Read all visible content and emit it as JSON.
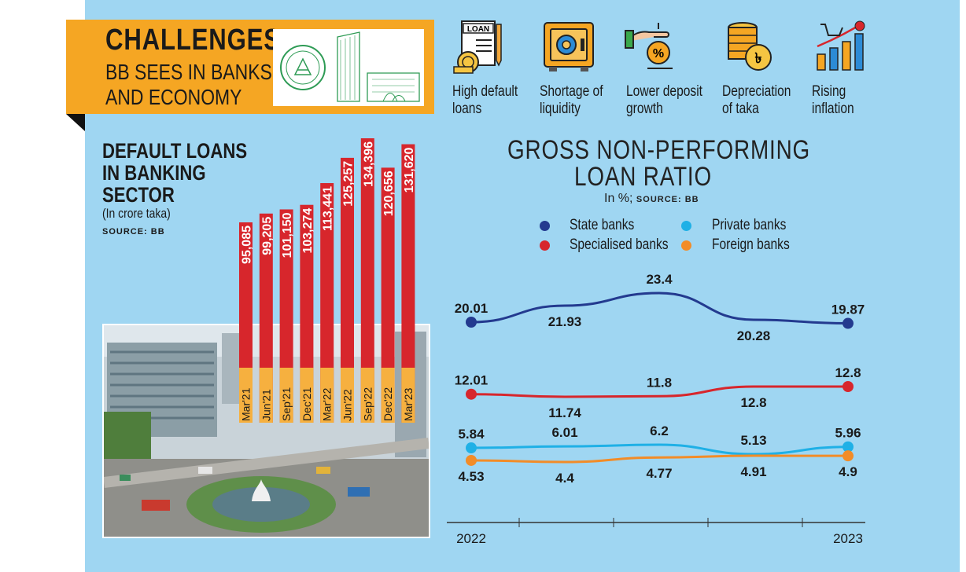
{
  "banner": {
    "title": "CHALLENGES",
    "subtitle_line1": "BB SEES IN BANKS",
    "subtitle_line2": "AND ECONOMY",
    "photo_icon": "bangladesh-bank-logo-and-building"
  },
  "challenges": [
    {
      "icon": "loan-document-icon",
      "line1": "High default",
      "line2": "loans"
    },
    {
      "icon": "safe-vault-icon",
      "line1": "Shortage of",
      "line2": "liquidity"
    },
    {
      "icon": "hand-coin-deposit-icon",
      "line1": "Lower deposit",
      "line2": "growth"
    },
    {
      "icon": "taka-coin-stack-icon",
      "line1": "Depreciation",
      "line2": "of taka"
    },
    {
      "icon": "rising-chart-cart-icon",
      "line1": "Rising",
      "line2": "inflation"
    }
  ],
  "colors": {
    "background": "#9fd6f2",
    "banner": "#f5a623",
    "bar_red": "#d7262c",
    "bar_label_band": "#f6b03f",
    "state": "#233a8f",
    "specialised": "#d7262c",
    "private": "#1fb0e6",
    "foreign": "#f28c28"
  },
  "chart_data": [
    {
      "type": "bar",
      "title_lines": [
        "DEFAULT LOANS",
        "IN BANKING",
        "SECTOR"
      ],
      "unit": "(In crore taka)",
      "source": "SOURCE: BB",
      "categories": [
        "Mar'21",
        "Jun'21",
        "Sep'21",
        "Dec'21",
        "Mar'22",
        "Jun'22",
        "Sep'22",
        "Dec'22",
        "Mar'23"
      ],
      "values": [
        95085,
        99205,
        101150,
        103274,
        113441,
        125257,
        134396,
        120656,
        131620
      ],
      "value_labels": [
        "95,085",
        "99,205",
        "101,150",
        "103,274",
        "113,441",
        "125,257",
        "134,396",
        "120,656",
        "131,620"
      ],
      "grid": false,
      "background_photo": "dhaka-motijheel-city-photo"
    },
    {
      "type": "line",
      "title_line1": "GROSS NON-PERFORMING",
      "title_line2": "LOAN RATIO",
      "unit": "In %;",
      "source": "SOURCE: BB",
      "x_tick_labels": [
        "2022",
        "2023"
      ],
      "legend": [
        "State banks",
        "Private banks",
        "Specialised banks",
        "Foreign banks"
      ],
      "legend_placement": "top",
      "grid": false,
      "series": [
        {
          "name": "State banks",
          "values": [
            20.01,
            21.93,
            23.4,
            20.28,
            19.87
          ],
          "labels": [
            "20.01",
            "21.93",
            "23.4",
            "20.28",
            "19.87"
          ]
        },
        {
          "name": "Specialised banks",
          "values": [
            12.01,
            11.74,
            11.8,
            12.8,
            12.8
          ],
          "labels": [
            "12.01",
            "11.74",
            "11.8",
            "12.8",
            "12.8"
          ]
        },
        {
          "name": "Private banks",
          "values": [
            5.84,
            6.01,
            6.2,
            5.13,
            5.96
          ],
          "labels": [
            "5.84",
            "6.01",
            "6.2",
            "5.13",
            "5.96"
          ]
        },
        {
          "name": "Foreign banks",
          "values": [
            4.53,
            4.4,
            4.77,
            4.91,
            4.9
          ],
          "labels": [
            "4.53",
            "4.4",
            "4.77",
            "4.91",
            "4.9"
          ]
        }
      ]
    }
  ]
}
